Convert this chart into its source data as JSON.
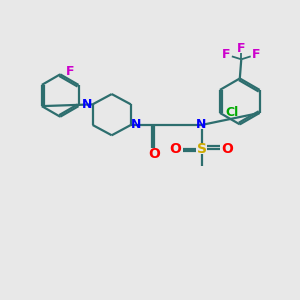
{
  "bg_color": "#e8e8e8",
  "bond_color": "#2d6e6e",
  "N_color": "#0000ff",
  "O_color": "#ff0000",
  "S_color": "#ccaa00",
  "F_color": "#cc00cc",
  "Cl_color": "#00aa00",
  "line_width": 1.6,
  "font_size": 9,
  "xlim": [
    0,
    10
  ],
  "ylim": [
    0,
    10
  ],
  "figsize": [
    3.0,
    3.0
  ],
  "dpi": 100
}
